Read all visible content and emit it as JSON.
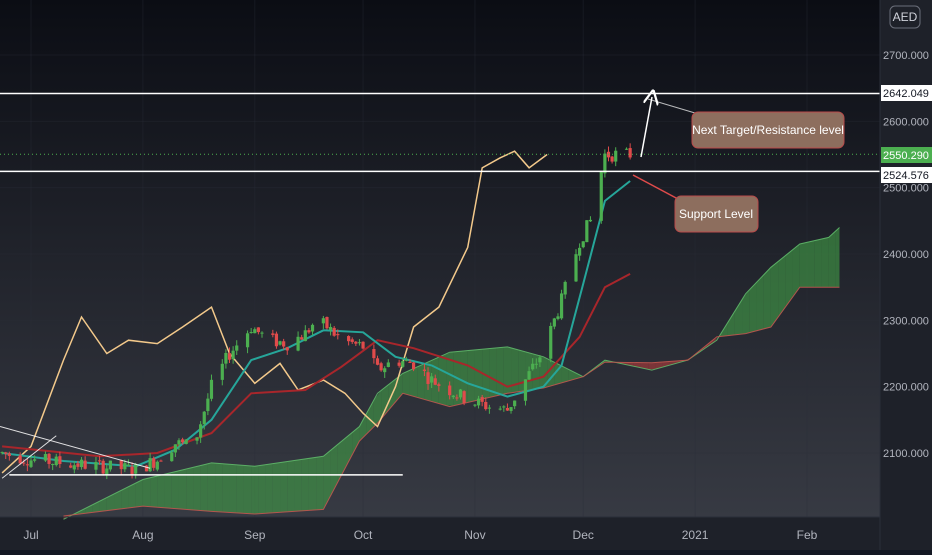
{
  "currency": "AED",
  "x_ticks": [
    "Jul",
    "Aug",
    "Sep",
    "Oct",
    "Nov",
    "Dec",
    "2021",
    "Feb"
  ],
  "y_ticks": [
    "2700.000",
    "2600.000",
    "2500.000",
    "2400.000",
    "2300.000",
    "2200.000",
    "2100.000"
  ],
  "price_tags": [
    {
      "text": "2642.049",
      "value": 2642.049,
      "bg": "#ffffff",
      "fg": "#131722"
    },
    {
      "text": "2550.290",
      "value": 2550.29,
      "bg": "#4caf50",
      "fg": "#ffffff"
    },
    {
      "text": "2524.576",
      "value": 2524.576,
      "bg": "#ffffff",
      "fg": "#131722"
    }
  ],
  "annotations": [
    {
      "text": "Next Target/Resistance level"
    },
    {
      "text": "Support Level"
    }
  ],
  "colors": {
    "bull": "#4caf50",
    "bear": "#e04b4b",
    "tenkan": "#26a69a",
    "kijun": "#a8262b",
    "chikou": "#f3c98b",
    "cloud_up": "#43a047",
    "cloud_down": "#b23a3a",
    "annotation_bg": "#8d6e5e"
  },
  "chart_data": {
    "type": "candlestick",
    "indicator": "ichimoku",
    "ylim": [
      2015,
      2750
    ],
    "xlim": [
      "2020-06-23",
      "2021-02-28"
    ],
    "horizontal_levels": [
      2642.049,
      2524.576
    ],
    "last_price": 2550.29,
    "support_trendline": {
      "from": [
        "2020-06-25",
        2067
      ],
      "to": [
        "2020-10-12",
        2067
      ]
    },
    "price_path": [
      [
        "2020-06-23",
        2100
      ],
      [
        "2020-07-01",
        2090
      ],
      [
        "2020-07-10",
        2085
      ],
      [
        "2020-07-20",
        2080
      ],
      [
        "2020-07-30",
        2075
      ],
      [
        "2020-08-05",
        2090
      ],
      [
        "2020-08-10",
        2115
      ],
      [
        "2020-08-15",
        2110
      ],
      [
        "2020-08-20",
        2200
      ],
      [
        "2020-08-25",
        2250
      ],
      [
        "2020-08-31",
        2290
      ],
      [
        "2020-09-05",
        2270
      ],
      [
        "2020-09-10",
        2265
      ],
      [
        "2020-09-15",
        2280
      ],
      [
        "2020-09-18",
        2300
      ],
      [
        "2020-09-21",
        2290
      ],
      [
        "2020-09-25",
        2270
      ],
      [
        "2020-10-01",
        2260
      ],
      [
        "2020-10-05",
        2225
      ],
      [
        "2020-10-10",
        2240
      ],
      [
        "2020-10-15",
        2235
      ],
      [
        "2020-10-20",
        2210
      ],
      [
        "2020-10-25",
        2195
      ],
      [
        "2020-10-30",
        2180
      ],
      [
        "2020-11-05",
        2170
      ],
      [
        "2020-11-10",
        2165
      ],
      [
        "2020-11-15",
        2210
      ],
      [
        "2020-11-20",
        2255
      ],
      [
        "2020-11-25",
        2330
      ],
      [
        "2020-11-30",
        2420
      ],
      [
        "2020-12-03",
        2450
      ],
      [
        "2020-12-07",
        2550
      ],
      [
        "2020-12-10",
        2550
      ],
      [
        "2020-12-14",
        2550
      ]
    ],
    "tenkan_sen": [
      [
        "2020-06-23",
        2100
      ],
      [
        "2020-07-10",
        2088
      ],
      [
        "2020-07-30",
        2080
      ],
      [
        "2020-08-10",
        2105
      ],
      [
        "2020-08-20",
        2150
      ],
      [
        "2020-08-31",
        2240
      ],
      [
        "2020-09-10",
        2258
      ],
      [
        "2020-09-20",
        2285
      ],
      [
        "2020-10-01",
        2282
      ],
      [
        "2020-10-10",
        2245
      ],
      [
        "2020-10-20",
        2232
      ],
      [
        "2020-10-30",
        2205
      ],
      [
        "2020-11-10",
        2185
      ],
      [
        "2020-11-20",
        2200
      ],
      [
        "2020-11-25",
        2232
      ],
      [
        "2020-12-01",
        2355
      ],
      [
        "2020-12-07",
        2480
      ],
      [
        "2020-12-14",
        2510
      ]
    ],
    "kijun_sen": [
      [
        "2020-06-23",
        2110
      ],
      [
        "2020-07-20",
        2095
      ],
      [
        "2020-08-05",
        2100
      ],
      [
        "2020-08-20",
        2130
      ],
      [
        "2020-08-31",
        2190
      ],
      [
        "2020-09-15",
        2195
      ],
      [
        "2020-09-25",
        2230
      ],
      [
        "2020-10-05",
        2270
      ],
      [
        "2020-10-15",
        2258
      ],
      [
        "2020-10-30",
        2232
      ],
      [
        "2020-11-10",
        2200
      ],
      [
        "2020-11-20",
        2215
      ],
      [
        "2020-11-30",
        2275
      ],
      [
        "2020-12-07",
        2350
      ],
      [
        "2020-12-14",
        2370
      ]
    ],
    "chikou_span": [
      [
        "2020-06-23",
        2070
      ],
      [
        "2020-07-01",
        2110
      ],
      [
        "2020-07-10",
        2240
      ],
      [
        "2020-07-15",
        2305
      ],
      [
        "2020-07-22",
        2250
      ],
      [
        "2020-07-28",
        2270
      ],
      [
        "2020-08-05",
        2265
      ],
      [
        "2020-08-12",
        2290
      ],
      [
        "2020-08-20",
        2320
      ],
      [
        "2020-08-25",
        2250
      ],
      [
        "2020-09-01",
        2205
      ],
      [
        "2020-09-08",
        2235
      ],
      [
        "2020-09-13",
        2195
      ],
      [
        "2020-09-20",
        2210
      ],
      [
        "2020-09-26",
        2190
      ],
      [
        "2020-10-01",
        2160
      ],
      [
        "2020-10-05",
        2140
      ],
      [
        "2020-10-10",
        2200
      ],
      [
        "2020-10-15",
        2290
      ],
      [
        "2020-10-22",
        2320
      ],
      [
        "2020-10-30",
        2410
      ],
      [
        "2020-11-03",
        2530
      ],
      [
        "2020-11-08",
        2545
      ],
      [
        "2020-11-12",
        2555
      ],
      [
        "2020-11-16",
        2530
      ],
      [
        "2020-11-21",
        2550
      ]
    ],
    "senkou_span_a": [
      [
        "2020-07-10",
        2000
      ],
      [
        "2020-08-01",
        2060
      ],
      [
        "2020-08-20",
        2085
      ],
      [
        "2020-09-01",
        2080
      ],
      [
        "2020-09-20",
        2095
      ],
      [
        "2020-09-30",
        2140
      ],
      [
        "2020-10-05",
        2190
      ],
      [
        "2020-10-12",
        2220
      ],
      [
        "2020-10-25",
        2252
      ],
      [
        "2020-11-10",
        2260
      ],
      [
        "2020-11-20",
        2245
      ],
      [
        "2020-12-01",
        2215
      ],
      [
        "2020-12-07",
        2240
      ],
      [
        "2020-12-20",
        2225
      ],
      [
        "2020-12-30",
        2240
      ],
      [
        "2021-01-07",
        2270
      ],
      [
        "2021-01-15",
        2340
      ],
      [
        "2021-01-22",
        2380
      ],
      [
        "2021-01-30",
        2415
      ],
      [
        "2021-02-07",
        2425
      ],
      [
        "2021-02-10",
        2440
      ]
    ],
    "senkou_span_b": [
      [
        "2020-07-10",
        2005
      ],
      [
        "2020-08-01",
        2020
      ],
      [
        "2020-08-20",
        2012
      ],
      [
        "2020-09-01",
        2008
      ],
      [
        "2020-09-20",
        2015
      ],
      [
        "2020-09-30",
        2118
      ],
      [
        "2020-10-05",
        2145
      ],
      [
        "2020-10-12",
        2190
      ],
      [
        "2020-10-25",
        2170
      ],
      [
        "2020-11-10",
        2190
      ],
      [
        "2020-11-20",
        2198
      ],
      [
        "2020-12-01",
        2215
      ],
      [
        "2020-12-07",
        2237
      ],
      [
        "2020-12-20",
        2236
      ],
      [
        "2020-12-30",
        2240
      ],
      [
        "2021-01-07",
        2275
      ],
      [
        "2021-01-15",
        2280
      ],
      [
        "2021-01-22",
        2290
      ],
      [
        "2021-01-30",
        2350
      ],
      [
        "2021-02-07",
        2350
      ],
      [
        "2021-02-10",
        2350
      ]
    ]
  }
}
